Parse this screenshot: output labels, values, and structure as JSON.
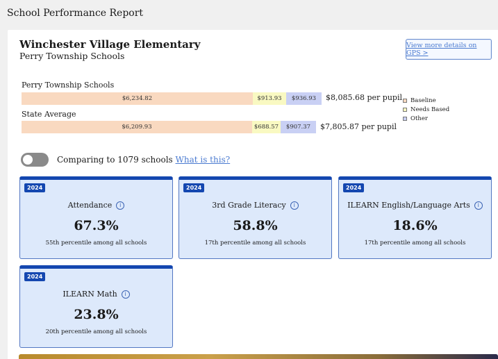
{
  "page": {
    "title": "School Performance Report"
  },
  "school": {
    "name": "Winchester Village Elementary",
    "district": "Perry Township Schools"
  },
  "gps_link": {
    "label": "View more details on GPS >"
  },
  "funding": {
    "rows": [
      {
        "label": "Perry Township Schools",
        "baseline": "$6,234.82",
        "needs_based": "$913.93",
        "other": "$936.93",
        "total": "$8,085.68 per pupil"
      },
      {
        "label": "State Average",
        "baseline": "$6,209.93",
        "needs_based": "$688.57",
        "other": "$907.37",
        "total": "$7,805.87 per pupil"
      }
    ],
    "legend": {
      "baseline": "Baseline",
      "needs_based": "Needs Based",
      "other": "Other"
    }
  },
  "compare": {
    "text": "Comparing to 1079 schools",
    "link": "What is this?"
  },
  "metrics": [
    {
      "year": "2024",
      "title": "Attendance",
      "value": "67.3%",
      "percentile": "55th percentile among all schools"
    },
    {
      "year": "2024",
      "title": "3rd Grade Literacy",
      "value": "58.8%",
      "percentile": "17th percentile among all schools"
    },
    {
      "year": "2024",
      "title": "ILEARN English/Language Arts",
      "value": "18.6%",
      "percentile": "17th percentile among all schools"
    },
    {
      "year": "2024",
      "title": "ILEARN Math",
      "value": "23.8%",
      "percentile": "20th percentile among all schools"
    }
  ],
  "colors": {
    "baseline": "#f9d9c0",
    "needs_based": "#f9f9c2",
    "other": "#c9d0f4",
    "accent": "#1447b0",
    "link": "#4a7ad0"
  }
}
